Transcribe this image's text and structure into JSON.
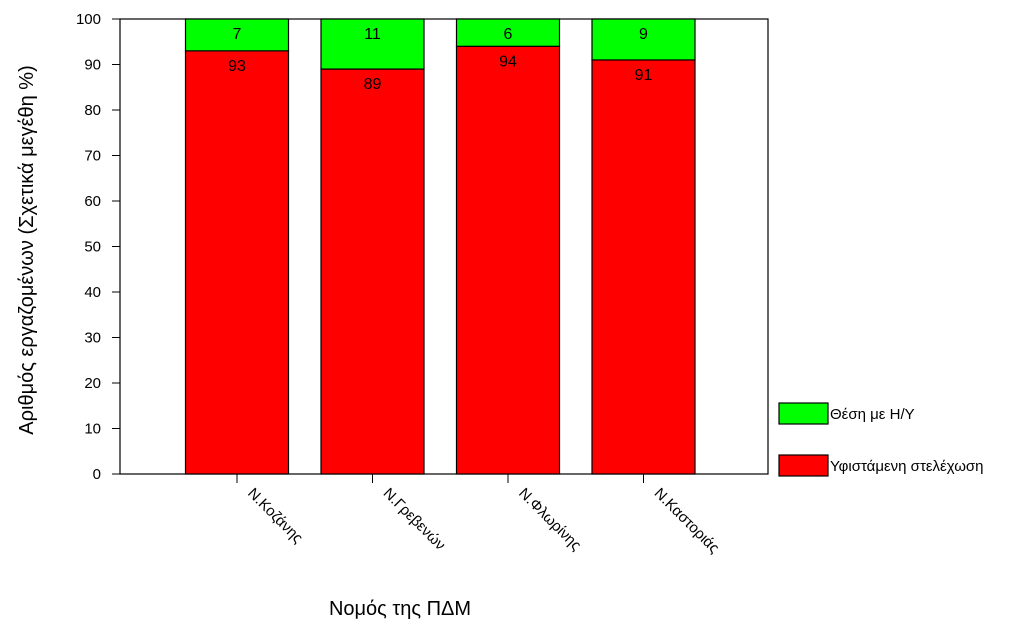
{
  "chart_data": {
    "type": "bar",
    "stacked": true,
    "categories": [
      "Ν.Κοζάνης",
      "Ν.Γρεβενών",
      "Ν.Φλωρίνης",
      "Ν.Καστοριάς"
    ],
    "series": [
      {
        "name": "Υφιστάμενη στελέχωση",
        "values": [
          93,
          89,
          94,
          91
        ],
        "color": "#ff0000"
      },
      {
        "name": "Θέση με Η/Υ",
        "values": [
          7,
          11,
          6,
          9
        ],
        "color": "#00ff00"
      }
    ],
    "xlabel": "Νομός της ΠΔΜ",
    "ylabel": "Αριθμός εργαζομένων (Σχετικά μεγέθη %)",
    "ylim": [
      0,
      100
    ],
    "yticks": [
      0,
      10,
      20,
      30,
      40,
      50,
      60,
      70,
      80,
      90,
      100
    ],
    "grid": false,
    "legend": "right"
  }
}
